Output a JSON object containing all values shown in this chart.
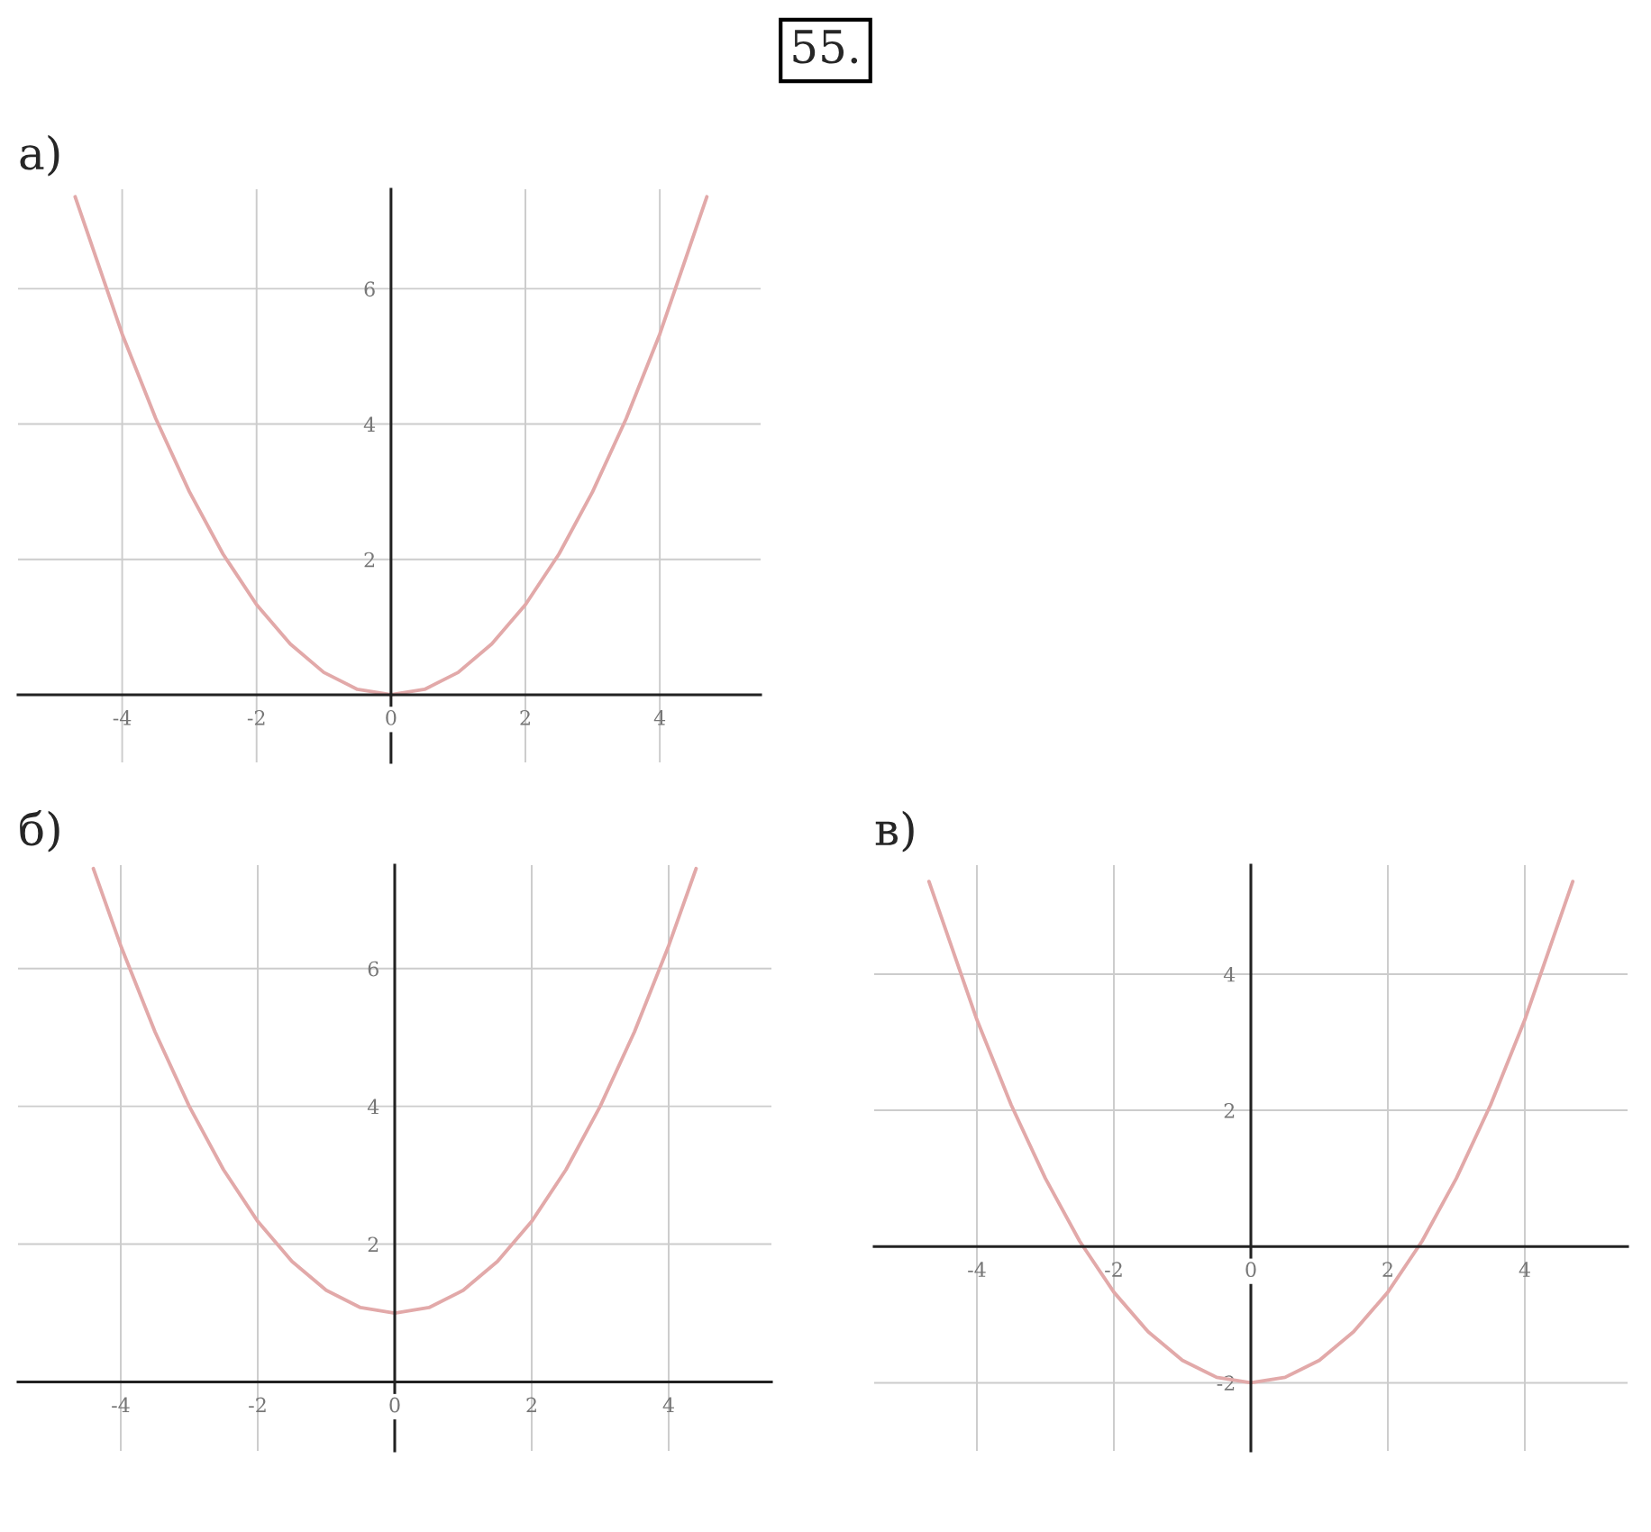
{
  "chart_data": [
    {
      "type": "line",
      "title": "а)",
      "annotations": [
        "55."
      ],
      "xlim": [
        -5.55,
        5.5
      ],
      "ylim": [
        -1.0,
        7.47
      ],
      "xticks": [
        -4,
        -2,
        0,
        2,
        4
      ],
      "yticks": [
        2,
        4,
        6
      ],
      "grid": true,
      "x": [
        -4.7,
        -4,
        -3.5,
        -3,
        -2.5,
        -2,
        -1.5,
        -1,
        -0.5,
        0,
        0.5,
        1,
        1.5,
        2,
        2.5,
        3,
        3.5,
        4,
        4.7
      ],
      "series": [
        {
          "color": "#e2a9a9",
          "values": [
            7.36,
            5.33,
            4.08,
            3,
            2.08,
            1.33,
            0.75,
            0.33,
            0.08,
            0,
            0.08,
            0.33,
            0.75,
            1.33,
            2.08,
            3,
            4.08,
            5.33,
            7.36
          ]
        }
      ]
    },
    {
      "type": "line",
      "title": "б)",
      "xlim": [
        -5.5,
        5.5
      ],
      "ylim": [
        -1.0,
        7.5
      ],
      "xticks": [
        -4,
        -2,
        0,
        2,
        4
      ],
      "yticks": [
        2,
        4,
        6
      ],
      "grid": true,
      "x": [
        -4.4,
        -4,
        -3.5,
        -3,
        -2.5,
        -2,
        -1.5,
        -1,
        -0.5,
        0,
        0.5,
        1,
        1.5,
        2,
        2.5,
        3,
        3.5,
        4,
        4.4
      ],
      "series": [
        {
          "color": "#e2a9a9",
          "values": [
            7.45,
            6.33,
            5.08,
            4,
            3.08,
            2.33,
            1.75,
            1.33,
            1.08,
            1,
            1.08,
            1.33,
            1.75,
            2.33,
            3.08,
            4,
            5.08,
            6.33,
            7.45
          ]
        }
      ]
    },
    {
      "type": "line",
      "title": "в)",
      "xlim": [
        -5.5,
        5.5
      ],
      "ylim": [
        -3.0,
        5.6
      ],
      "xticks": [
        -4,
        -2,
        0,
        2,
        4
      ],
      "yticks": [
        -2,
        2,
        4
      ],
      "grid": true,
      "x": [
        -4.7,
        -4,
        -3.5,
        -3,
        -2.5,
        -2,
        -1.5,
        -1,
        -0.5,
        0,
        0.5,
        1,
        1.5,
        2,
        2.5,
        3,
        3.5,
        4,
        4.7
      ],
      "series": [
        {
          "color": "#e2a9a9",
          "values": [
            5.36,
            3.33,
            2.08,
            1,
            0.08,
            -0.67,
            -1.25,
            -1.67,
            -1.92,
            -2,
            -1.92,
            -1.67,
            -1.25,
            -0.67,
            0.08,
            1,
            2.08,
            3.33,
            5.36
          ]
        }
      ]
    }
  ]
}
